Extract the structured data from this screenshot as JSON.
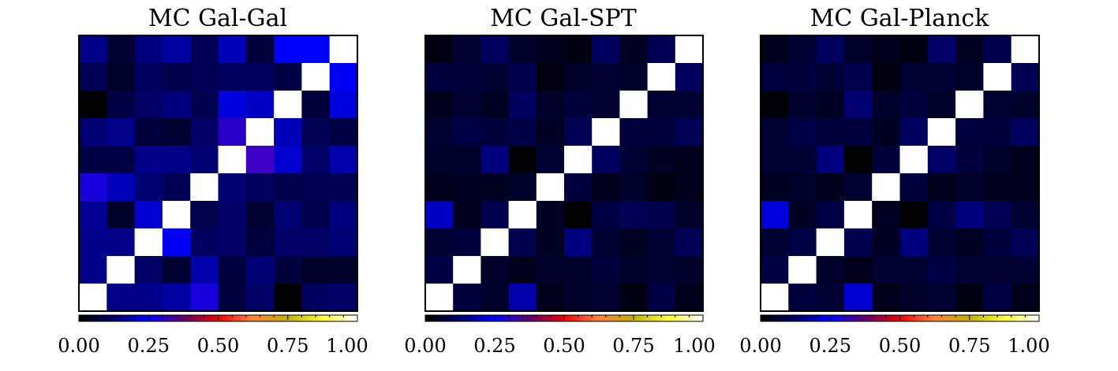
{
  "chart_data": [
    {
      "type": "heatmap",
      "title": "MC Gal-Gal",
      "colorbar": {
        "ticks": [
          "0.00",
          "0.25",
          "0.50",
          "0.75",
          "1.00"
        ],
        "range": [
          0,
          1
        ]
      },
      "matrix": [
        [
          0.15,
          0.06,
          0.14,
          0.17,
          0.1,
          0.19,
          0.07,
          0.25,
          0.25,
          1.0
        ],
        [
          0.1,
          0.05,
          0.11,
          0.09,
          0.1,
          0.11,
          0.11,
          0.08,
          1.0,
          0.24
        ],
        [
          0.0,
          0.08,
          0.12,
          0.14,
          0.09,
          0.22,
          0.2,
          1.0,
          0.07,
          0.22
        ],
        [
          0.13,
          0.15,
          0.07,
          0.06,
          0.12,
          0.3,
          1.0,
          0.19,
          0.1,
          0.08
        ],
        [
          0.08,
          0.08,
          0.15,
          0.15,
          0.13,
          1.0,
          0.33,
          0.21,
          0.12,
          0.18
        ],
        [
          0.28,
          0.19,
          0.13,
          0.1,
          1.0,
          0.13,
          0.11,
          0.09,
          0.1,
          0.1
        ],
        [
          0.16,
          0.05,
          0.21,
          1.0,
          0.09,
          0.12,
          0.06,
          0.13,
          0.09,
          0.14
        ],
        [
          0.15,
          0.15,
          1.0,
          0.24,
          0.11,
          0.12,
          0.07,
          0.12,
          0.12,
          0.13
        ],
        [
          0.15,
          1.0,
          0.12,
          0.06,
          0.18,
          0.07,
          0.13,
          0.07,
          0.05,
          0.05
        ],
        [
          1.0,
          0.15,
          0.15,
          0.17,
          0.28,
          0.07,
          0.12,
          0.0,
          0.11,
          0.12
        ]
      ]
    },
    {
      "type": "heatmap",
      "title": "MC Gal-SPT",
      "colorbar": {
        "ticks": [
          "0.00",
          "0.25",
          "0.50",
          "0.75",
          "1.00"
        ],
        "range": [
          0,
          1
        ]
      },
      "matrix": [
        [
          0.02,
          0.06,
          0.11,
          0.05,
          0.03,
          0.02,
          0.11,
          0.04,
          0.1,
          1.0
        ],
        [
          0.07,
          0.07,
          0.06,
          0.09,
          0.02,
          0.05,
          0.06,
          0.05,
          1.0,
          0.11
        ],
        [
          0.03,
          0.06,
          0.04,
          0.11,
          0.05,
          0.07,
          0.06,
          1.0,
          0.06,
          0.06
        ],
        [
          0.06,
          0.08,
          0.07,
          0.08,
          0.04,
          0.1,
          1.0,
          0.07,
          0.07,
          0.1
        ],
        [
          0.05,
          0.05,
          0.14,
          0.0,
          0.06,
          1.0,
          0.11,
          0.06,
          0.04,
          0.03
        ],
        [
          0.03,
          0.04,
          0.04,
          0.05,
          1.0,
          0.07,
          0.03,
          0.05,
          0.02,
          0.03
        ],
        [
          0.2,
          0.03,
          0.09,
          1.0,
          0.04,
          0.0,
          0.08,
          0.1,
          0.09,
          0.05
        ],
        [
          0.06,
          0.07,
          1.0,
          0.09,
          0.04,
          0.14,
          0.06,
          0.04,
          0.06,
          0.1
        ],
        [
          0.08,
          1.0,
          0.05,
          0.03,
          0.05,
          0.05,
          0.07,
          0.05,
          0.06,
          0.05
        ],
        [
          1.0,
          0.07,
          0.05,
          0.18,
          0.03,
          0.05,
          0.06,
          0.02,
          0.08,
          0.03
        ]
      ]
    },
    {
      "type": "heatmap",
      "title": "MC Gal-Planck",
      "colorbar": {
        "ticks": [
          "0.00",
          "0.25",
          "0.50",
          "0.75",
          "1.00"
        ],
        "range": [
          0,
          1
        ]
      },
      "matrix": [
        [
          0.03,
          0.06,
          0.11,
          0.05,
          0.03,
          0.02,
          0.12,
          0.04,
          0.09,
          1.0
        ],
        [
          0.07,
          0.07,
          0.06,
          0.09,
          0.02,
          0.06,
          0.06,
          0.05,
          1.0,
          0.1
        ],
        [
          0.01,
          0.05,
          0.04,
          0.13,
          0.05,
          0.07,
          0.05,
          1.0,
          0.06,
          0.05
        ],
        [
          0.06,
          0.08,
          0.07,
          0.07,
          0.04,
          0.11,
          1.0,
          0.07,
          0.07,
          0.11
        ],
        [
          0.06,
          0.06,
          0.14,
          0.0,
          0.07,
          1.0,
          0.12,
          0.07,
          0.05,
          0.03
        ],
        [
          0.04,
          0.05,
          0.03,
          0.06,
          1.0,
          0.07,
          0.03,
          0.05,
          0.03,
          0.03
        ],
        [
          0.22,
          0.04,
          0.08,
          1.0,
          0.04,
          0.0,
          0.08,
          0.14,
          0.1,
          0.06
        ],
        [
          0.06,
          0.08,
          1.0,
          0.09,
          0.04,
          0.14,
          0.06,
          0.04,
          0.07,
          0.1
        ],
        [
          0.08,
          1.0,
          0.05,
          0.03,
          0.06,
          0.06,
          0.08,
          0.06,
          0.06,
          0.06
        ],
        [
          1.0,
          0.07,
          0.06,
          0.21,
          0.03,
          0.05,
          0.06,
          0.02,
          0.08,
          0.03
        ]
      ]
    }
  ]
}
